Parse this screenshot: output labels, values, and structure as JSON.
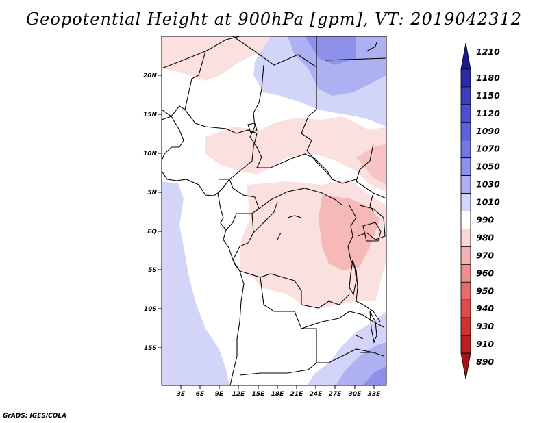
{
  "title": "Geopotential Height at 900hPa [gpm], VT: 2019042312",
  "credit": "GrADS: IGES/COLA",
  "map": {
    "lat_labels": [
      "20N",
      "15N",
      "10N",
      "5N",
      "EQ",
      "5S",
      "10S",
      "15S"
    ],
    "lon_labels": [
      "3E",
      "6E",
      "9E",
      "12E",
      "15E",
      "18E",
      "21E",
      "24E",
      "27E",
      "30E",
      "33E"
    ]
  },
  "colorbar": {
    "levels": [
      "1210",
      "1180",
      "1150",
      "1120",
      "1090",
      "1070",
      "1050",
      "1030",
      "1010",
      "990",
      "980",
      "970",
      "960",
      "950",
      "940",
      "930",
      "910",
      "890"
    ],
    "colors": [
      "#1c1a8c",
      "#2a2aa8",
      "#3b3cc0",
      "#4b4fd0",
      "#5d62dc",
      "#7377e3",
      "#8e91ea",
      "#adb0f1",
      "#d2d4f8",
      "#ffffff",
      "#fbd6d6",
      "#f6b2b2",
      "#ee8f8f",
      "#e66c6c",
      "#dd4b4b",
      "#cf3030",
      "#bb1f1f",
      "#a01515"
    ]
  },
  "colors": {
    "blue_light": "#d2d4f8",
    "blue_mid": "#adb0f1",
    "blue_deep": "#8e91ea",
    "pink_light": "#fbe0e0",
    "pink_mid": "#f6b8b8"
  }
}
